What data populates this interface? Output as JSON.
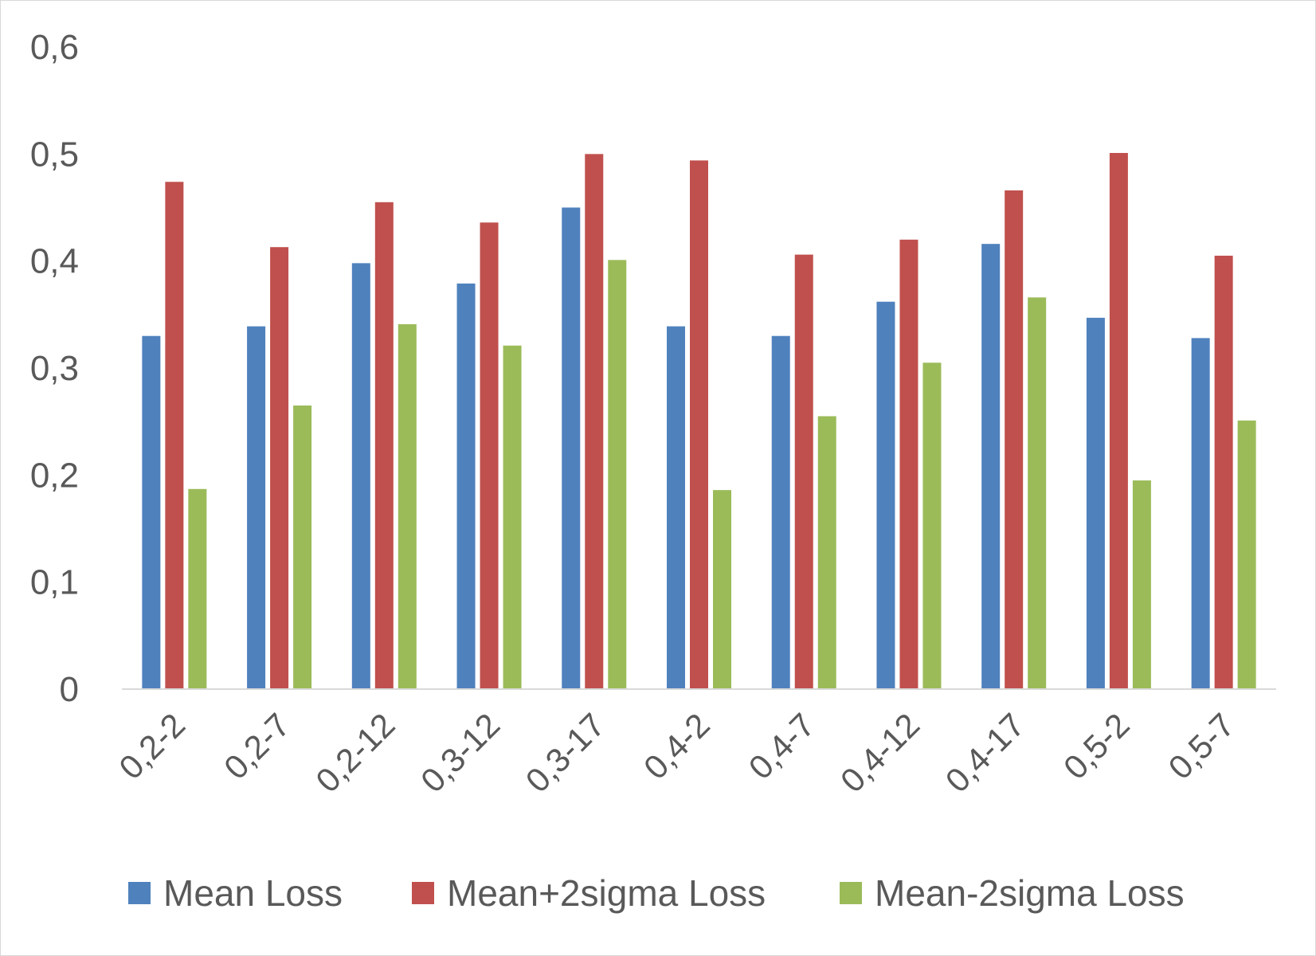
{
  "chart_data": {
    "type": "bar",
    "title": "",
    "xlabel": "",
    "ylabel": "",
    "ylim": [
      0,
      0.6
    ],
    "yticks": [
      {
        "value": 0,
        "label": "0"
      },
      {
        "value": 0.1,
        "label": "0,1"
      },
      {
        "value": 0.2,
        "label": "0,2"
      },
      {
        "value": 0.3,
        "label": "0,3"
      },
      {
        "value": 0.4,
        "label": "0,4"
      },
      {
        "value": 0.5,
        "label": "0,5"
      },
      {
        "value": 0.6,
        "label": "0,6"
      }
    ],
    "grid": false,
    "legend_position": "bottom",
    "categories": [
      "0,2-2",
      "0,2-7",
      "0,2-12",
      "0,3-12",
      "0,3-17",
      "0,4-2",
      "0,4-7",
      "0,4-12",
      "0,4-17",
      "0,5-2",
      "0,5-7"
    ],
    "series": [
      {
        "name": "Mean Loss",
        "color": "#4f81bd",
        "values": [
          0.33,
          0.339,
          0.398,
          0.379,
          0.45,
          0.339,
          0.33,
          0.362,
          0.416,
          0.347,
          0.328
        ]
      },
      {
        "name": "Mean+2sigma Loss",
        "color": "#c0504d",
        "values": [
          0.474,
          0.413,
          0.455,
          0.436,
          0.5,
          0.494,
          0.406,
          0.42,
          0.466,
          0.501,
          0.405
        ]
      },
      {
        "name": "Mean-2sigma Loss",
        "color": "#9bbb59",
        "values": [
          0.187,
          0.265,
          0.341,
          0.321,
          0.401,
          0.186,
          0.255,
          0.305,
          0.366,
          0.195,
          0.251
        ]
      }
    ]
  }
}
